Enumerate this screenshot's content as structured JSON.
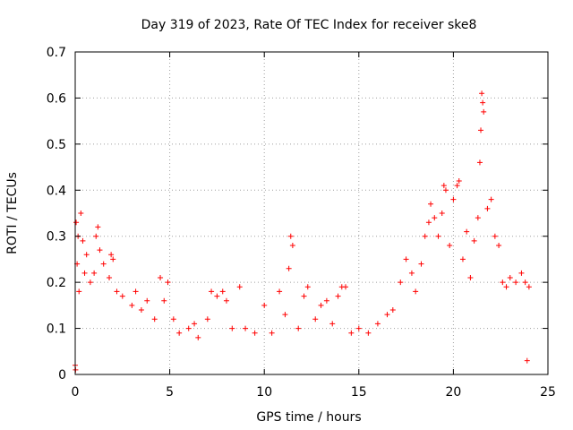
{
  "chart_data": {
    "type": "scatter",
    "title": "Day 319 of 2023, Rate Of TEC Index for receiver ske8",
    "xlabel": "GPS time / hours",
    "ylabel": "ROTI / TECUs",
    "xlim": [
      0,
      25
    ],
    "ylim": [
      0,
      0.7
    ],
    "xticks": [
      "0",
      "5",
      "10",
      "15",
      "20",
      "25"
    ],
    "yticks": [
      "0",
      "0.1",
      "0.2",
      "0.3",
      "0.4",
      "0.5",
      "0.6",
      "0.7"
    ],
    "grid": true,
    "marker": "+",
    "color": "#ff0000",
    "series": [
      {
        "points": [
          [
            0.0,
            0.02
          ],
          [
            0.05,
            0.33
          ],
          [
            0.1,
            0.24
          ],
          [
            0.15,
            0.3
          ],
          [
            0.2,
            0.18
          ],
          [
            0.3,
            0.35
          ],
          [
            0.4,
            0.29
          ],
          [
            0.5,
            0.22
          ],
          [
            0.6,
            0.26
          ],
          [
            0.8,
            0.2
          ],
          [
            1.0,
            0.22
          ],
          [
            1.1,
            0.3
          ],
          [
            1.2,
            0.32
          ],
          [
            1.3,
            0.27
          ],
          [
            1.5,
            0.24
          ],
          [
            1.8,
            0.21
          ],
          [
            1.9,
            0.26
          ],
          [
            2.0,
            0.25
          ],
          [
            2.2,
            0.18
          ],
          [
            2.5,
            0.17
          ],
          [
            3.0,
            0.15
          ],
          [
            3.2,
            0.18
          ],
          [
            3.5,
            0.14
          ],
          [
            3.8,
            0.16
          ],
          [
            4.2,
            0.12
          ],
          [
            4.5,
            0.21
          ],
          [
            4.7,
            0.16
          ],
          [
            4.9,
            0.2
          ],
          [
            5.2,
            0.12
          ],
          [
            5.5,
            0.09
          ],
          [
            6.0,
            0.1
          ],
          [
            6.3,
            0.11
          ],
          [
            6.5,
            0.08
          ],
          [
            7.0,
            0.12
          ],
          [
            7.2,
            0.18
          ],
          [
            7.5,
            0.17
          ],
          [
            7.8,
            0.18
          ],
          [
            8.0,
            0.16
          ],
          [
            8.3,
            0.1
          ],
          [
            8.7,
            0.19
          ],
          [
            9.0,
            0.1
          ],
          [
            9.5,
            0.09
          ],
          [
            10.0,
            0.15
          ],
          [
            10.4,
            0.09
          ],
          [
            10.8,
            0.18
          ],
          [
            11.1,
            0.13
          ],
          [
            11.3,
            0.23
          ],
          [
            11.4,
            0.3
          ],
          [
            11.5,
            0.28
          ],
          [
            11.8,
            0.1
          ],
          [
            12.1,
            0.17
          ],
          [
            12.3,
            0.19
          ],
          [
            12.7,
            0.12
          ],
          [
            13.0,
            0.15
          ],
          [
            13.3,
            0.16
          ],
          [
            13.6,
            0.11
          ],
          [
            13.9,
            0.17
          ],
          [
            14.1,
            0.19
          ],
          [
            14.3,
            0.19
          ],
          [
            14.6,
            0.09
          ],
          [
            15.0,
            0.1
          ],
          [
            15.5,
            0.09
          ],
          [
            16.0,
            0.11
          ],
          [
            16.5,
            0.13
          ],
          [
            16.8,
            0.14
          ],
          [
            17.2,
            0.2
          ],
          [
            17.5,
            0.25
          ],
          [
            17.8,
            0.22
          ],
          [
            18.0,
            0.18
          ],
          [
            18.3,
            0.24
          ],
          [
            18.5,
            0.3
          ],
          [
            18.7,
            0.33
          ],
          [
            18.8,
            0.37
          ],
          [
            19.0,
            0.34
          ],
          [
            19.2,
            0.3
          ],
          [
            19.4,
            0.35
          ],
          [
            19.5,
            0.41
          ],
          [
            19.6,
            0.4
          ],
          [
            19.8,
            0.28
          ],
          [
            20.0,
            0.38
          ],
          [
            20.2,
            0.41
          ],
          [
            20.3,
            0.42
          ],
          [
            20.5,
            0.25
          ],
          [
            20.7,
            0.31
          ],
          [
            20.9,
            0.21
          ],
          [
            21.1,
            0.29
          ],
          [
            21.3,
            0.34
          ],
          [
            21.4,
            0.46
          ],
          [
            21.45,
            0.53
          ],
          [
            21.5,
            0.61
          ],
          [
            21.55,
            0.59
          ],
          [
            21.6,
            0.57
          ],
          [
            21.8,
            0.36
          ],
          [
            22.0,
            0.38
          ],
          [
            22.2,
            0.3
          ],
          [
            22.4,
            0.28
          ],
          [
            22.6,
            0.2
          ],
          [
            22.8,
            0.19
          ],
          [
            23.0,
            0.21
          ],
          [
            23.3,
            0.2
          ],
          [
            23.6,
            0.22
          ],
          [
            23.8,
            0.2
          ],
          [
            24.0,
            0.19
          ],
          [
            23.9,
            0.03
          ],
          [
            0.02,
            0.01
          ]
        ]
      }
    ]
  }
}
